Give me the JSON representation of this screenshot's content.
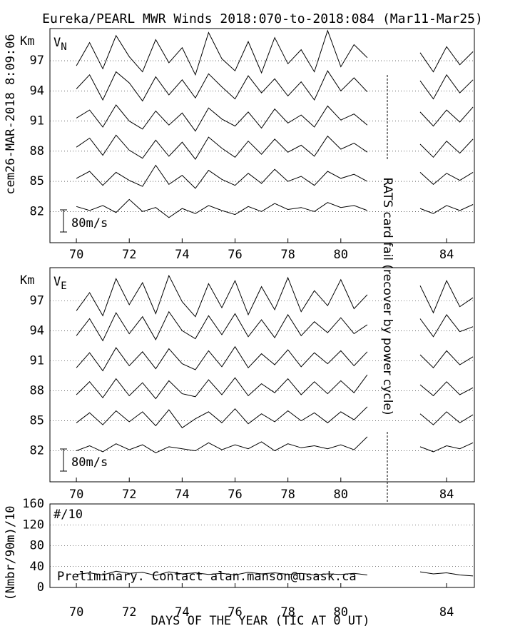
{
  "chart_data": [
    {
      "type": "line",
      "title": "Eureka/PEARL MWR Winds 2018:070-to-2018:084 (Mar11-Mar25)",
      "side_label": "cem26-MAR-2018 8:09:06",
      "note": "RATS card fail (recover by power cycle)",
      "ylabel": "Km",
      "component": "V",
      "component_sub": "N",
      "scale_label": "80m/s",
      "xlim": [
        69,
        85.05
      ],
      "xticks": [
        70,
        72,
        74,
        76,
        78,
        80,
        84
      ],
      "ylim": [
        78.9,
        100.2
      ],
      "yticks": [
        82,
        85,
        88,
        91,
        94,
        97
      ],
      "grid": "dotted",
      "x": [
        70,
        70.5,
        71,
        71.5,
        72,
        72.5,
        73,
        73.5,
        74,
        74.5,
        75,
        75.5,
        76,
        76.5,
        77,
        77.5,
        78,
        78.5,
        79,
        79.5,
        80,
        80.5,
        81,
        81.5,
        82,
        82.5,
        83,
        83.5,
        84,
        84.5,
        85
      ],
      "series": [
        {
          "name": "97",
          "color": "#000000",
          "values": [
            96.5,
            98.8,
            96.2,
            99.5,
            97.4,
            95.9,
            99.1,
            96.8,
            98.3,
            95.6,
            99.8,
            97.2,
            96.0,
            98.9,
            95.8,
            99.3,
            96.7,
            98.1,
            95.9,
            100.0,
            96.4,
            98.6,
            97.3,
            null,
            null,
            null,
            97.8,
            95.9,
            98.4,
            96.6,
            97.9
          ]
        },
        {
          "name": "94",
          "color": "#000000",
          "values": [
            94.2,
            95.6,
            93.1,
            95.9,
            94.8,
            93.0,
            95.4,
            93.6,
            95.1,
            93.3,
            95.7,
            94.4,
            93.2,
            95.5,
            93.8,
            95.2,
            93.5,
            94.9,
            93.1,
            96.0,
            94.0,
            95.3,
            93.9,
            null,
            null,
            null,
            95.0,
            93.2,
            95.6,
            93.8,
            95.1
          ]
        },
        {
          "name": "91",
          "color": "#000000",
          "values": [
            91.3,
            92.1,
            90.4,
            92.6,
            91.0,
            90.2,
            92.0,
            90.6,
            91.8,
            90.0,
            92.3,
            91.2,
            90.5,
            91.9,
            90.3,
            92.2,
            90.8,
            91.6,
            90.4,
            92.5,
            91.1,
            91.7,
            90.6,
            null,
            null,
            null,
            91.9,
            90.5,
            92.1,
            90.9,
            92.4
          ]
        },
        {
          "name": "88",
          "color": "#000000",
          "values": [
            88.4,
            89.3,
            87.6,
            89.6,
            88.1,
            87.3,
            89.1,
            87.5,
            88.9,
            87.2,
            89.4,
            88.3,
            87.4,
            89.0,
            87.7,
            89.2,
            87.9,
            88.6,
            87.5,
            89.5,
            88.2,
            88.8,
            87.9,
            null,
            null,
            null,
            88.7,
            87.4,
            89.0,
            87.8,
            89.2
          ]
        },
        {
          "name": "85",
          "color": "#000000",
          "values": [
            85.3,
            86.0,
            84.6,
            85.9,
            85.1,
            84.5,
            86.6,
            84.7,
            85.6,
            84.3,
            86.1,
            85.2,
            84.6,
            85.8,
            84.8,
            86.2,
            85.0,
            85.5,
            84.6,
            86.0,
            85.3,
            85.7,
            85.0,
            null,
            null,
            null,
            85.9,
            84.7,
            85.8,
            85.1,
            85.9
          ]
        },
        {
          "name": "82",
          "color": "#000000",
          "values": [
            82.5,
            82.1,
            82.6,
            81.9,
            83.2,
            82.0,
            82.4,
            81.4,
            82.3,
            81.8,
            82.6,
            82.1,
            81.7,
            82.5,
            82.0,
            82.8,
            82.2,
            82.4,
            82.0,
            82.9,
            82.4,
            82.6,
            82.1,
            null,
            null,
            null,
            82.3,
            81.8,
            82.6,
            82.1,
            82.7
          ]
        }
      ]
    },
    {
      "type": "line",
      "ylabel": "Km",
      "component": "V",
      "component_sub": "E",
      "scale_label": "80m/s",
      "xlim": [
        69,
        85.05
      ],
      "xticks": [
        70,
        72,
        74,
        76,
        78,
        80,
        84
      ],
      "ylim": [
        78.9,
        100.3
      ],
      "yticks": [
        82,
        85,
        88,
        91,
        94,
        97
      ],
      "grid": "dotted",
      "x": [
        70,
        70.5,
        71,
        71.5,
        72,
        72.5,
        73,
        73.5,
        74,
        74.5,
        75,
        75.5,
        76,
        76.5,
        77,
        77.5,
        78,
        78.5,
        79,
        79.5,
        80,
        80.5,
        81,
        81.5,
        82,
        82.5,
        83,
        83.5,
        84,
        84.5,
        85
      ],
      "series": [
        {
          "name": "97",
          "color": "#000000",
          "values": [
            96.0,
            97.8,
            95.5,
            99.2,
            96.6,
            98.8,
            95.7,
            99.5,
            96.9,
            95.4,
            98.7,
            96.3,
            99.0,
            95.6,
            98.4,
            96.1,
            99.3,
            95.9,
            98.0,
            96.5,
            99.1,
            96.2,
            97.6,
            null,
            null,
            null,
            98.5,
            95.8,
            99.0,
            96.4,
            97.3
          ]
        },
        {
          "name": "94",
          "color": "#000000",
          "values": [
            93.5,
            95.2,
            93.0,
            95.8,
            93.7,
            95.4,
            93.1,
            95.9,
            94.0,
            93.2,
            95.5,
            93.6,
            95.7,
            93.4,
            95.1,
            93.3,
            95.6,
            93.5,
            94.9,
            93.8,
            95.3,
            93.7,
            94.6,
            null,
            null,
            null,
            95.2,
            93.4,
            95.6,
            93.9,
            94.4
          ]
        },
        {
          "name": "91",
          "color": "#000000",
          "values": [
            90.3,
            91.8,
            90.0,
            92.3,
            90.5,
            91.9,
            90.2,
            92.2,
            90.7,
            90.1,
            92.0,
            90.4,
            92.4,
            90.3,
            91.7,
            90.6,
            92.1,
            90.4,
            91.8,
            90.7,
            92.0,
            90.5,
            91.9,
            null,
            null,
            null,
            91.6,
            90.3,
            92.0,
            90.6,
            91.4
          ]
        },
        {
          "name": "88",
          "color": "#000000",
          "values": [
            87.6,
            88.9,
            87.3,
            89.2,
            87.5,
            88.8,
            87.2,
            89.0,
            87.7,
            87.4,
            89.1,
            87.6,
            89.3,
            87.5,
            88.7,
            87.8,
            89.2,
            87.6,
            88.9,
            87.7,
            89.0,
            87.8,
            89.6,
            null,
            null,
            null,
            88.6,
            87.5,
            88.9,
            87.6,
            88.3
          ]
        },
        {
          "name": "85",
          "color": "#000000",
          "values": [
            84.8,
            85.8,
            84.6,
            86.0,
            84.9,
            85.9,
            84.5,
            86.1,
            84.3,
            85.2,
            85.9,
            84.8,
            86.2,
            84.7,
            85.7,
            84.9,
            86.0,
            85.0,
            85.8,
            84.8,
            85.9,
            85.1,
            86.4,
            null,
            null,
            null,
            85.7,
            84.6,
            85.9,
            84.8,
            85.6
          ]
        },
        {
          "name": "82",
          "color": "#000000",
          "values": [
            82.0,
            82.5,
            81.9,
            82.7,
            82.1,
            82.6,
            81.8,
            82.4,
            82.2,
            82.0,
            82.8,
            82.1,
            82.6,
            82.2,
            82.9,
            82.0,
            82.7,
            82.3,
            82.5,
            82.2,
            82.6,
            82.1,
            83.4,
            null,
            null,
            null,
            82.4,
            81.9,
            82.5,
            82.2,
            82.8
          ]
        }
      ]
    },
    {
      "type": "line",
      "ylabel": "(Nmbr/90m)/10",
      "inner_label": "#/10",
      "footer": "Preliminary. Contact alan.manson@usask.ca",
      "xlabel": "DAYS OF THE YEAR (TIC AT 0 UT)",
      "xlim": [
        69,
        85.05
      ],
      "xticks": [
        70,
        72,
        74,
        76,
        78,
        80,
        84
      ],
      "ylim": [
        0,
        160
      ],
      "yticks": [
        0,
        40,
        80,
        120,
        160
      ],
      "grid": "dotted",
      "x": [
        70,
        70.5,
        71,
        71.5,
        72,
        72.5,
        73,
        73.5,
        74,
        74.5,
        75,
        75.5,
        76,
        76.5,
        77,
        77.5,
        78,
        78.5,
        79,
        79.5,
        80,
        80.5,
        81,
        81.5,
        82,
        82.5,
        83,
        83.5,
        84,
        84.5,
        85
      ],
      "series": [
        {
          "name": "#/10",
          "color": "#000000",
          "values": [
            25,
            28,
            24,
            31,
            27,
            29,
            23,
            30,
            26,
            28,
            25,
            27,
            24,
            29,
            26,
            28,
            25,
            27,
            24,
            26,
            25,
            27,
            24,
            null,
            null,
            null,
            30,
            26,
            28,
            24,
            22
          ]
        }
      ]
    }
  ]
}
